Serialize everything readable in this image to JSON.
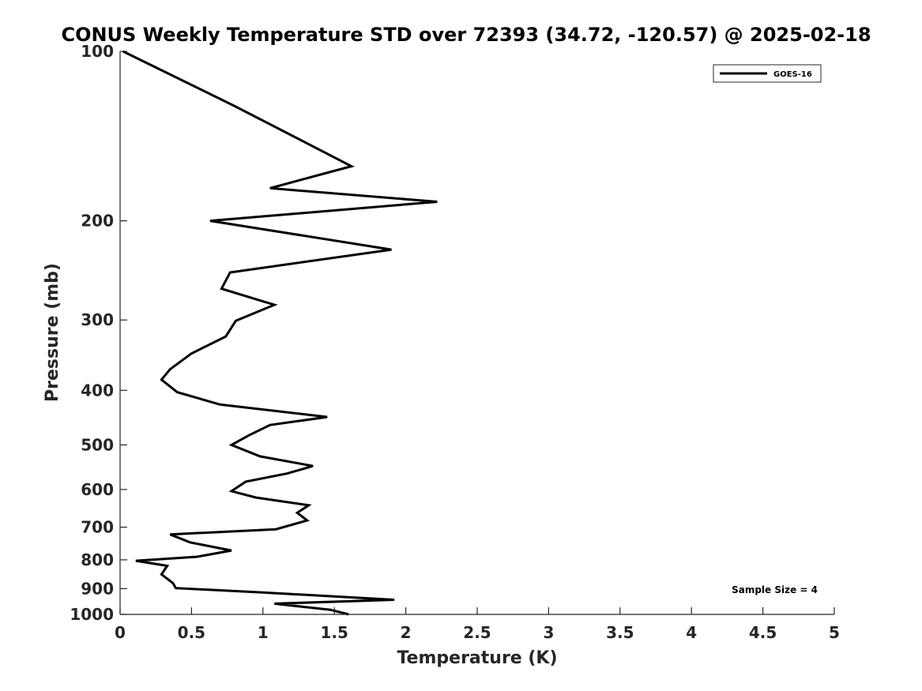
{
  "chart_data": {
    "type": "line",
    "title": "CONUS Weekly Temperature STD over 72393 (34.72, -120.57) @ 2025-02-18",
    "xlabel": "Temperature (K)",
    "ylabel": "Pressure (mb)",
    "xlim": [
      0,
      5
    ],
    "ylim": [
      100,
      1000
    ],
    "y_scale": "log",
    "y_reversed": true,
    "x_ticks": [
      "0",
      "0.5",
      "1",
      "1.5",
      "2",
      "2.5",
      "3",
      "3.5",
      "4",
      "4.5",
      "5"
    ],
    "y_ticks": [
      "100",
      "200",
      "300",
      "400",
      "500",
      "600",
      "700",
      "800",
      "900",
      "1000"
    ],
    "grid": false,
    "legend_position": "top-right",
    "annotation": "Sample Size = 4",
    "series": [
      {
        "name": "GOES-16",
        "color": "#000000",
        "points": [
          [
            0.02,
            100
          ],
          [
            0.8,
            125
          ],
          [
            1.62,
            160
          ],
          [
            1.05,
            175
          ],
          [
            2.22,
            185
          ],
          [
            0.63,
            200
          ],
          [
            1.9,
            225
          ],
          [
            0.77,
            247
          ],
          [
            0.71,
            264
          ],
          [
            1.08,
            282
          ],
          [
            0.81,
            301
          ],
          [
            0.74,
            321
          ],
          [
            0.5,
            344
          ],
          [
            0.35,
            367
          ],
          [
            0.29,
            383
          ],
          [
            0.4,
            403
          ],
          [
            0.7,
            424
          ],
          [
            1.45,
            446
          ],
          [
            1.05,
            461
          ],
          [
            0.9,
            481
          ],
          [
            0.78,
            500
          ],
          [
            0.98,
            524
          ],
          [
            1.35,
            545
          ],
          [
            1.17,
            562
          ],
          [
            0.88,
            581
          ],
          [
            0.78,
            604
          ],
          [
            0.95,
            620
          ],
          [
            1.32,
            640
          ],
          [
            1.24,
            660
          ],
          [
            1.31,
            681
          ],
          [
            1.09,
            706
          ],
          [
            0.35,
            721
          ],
          [
            0.49,
            745
          ],
          [
            0.78,
            770
          ],
          [
            0.54,
            790
          ],
          [
            0.11,
            803
          ],
          [
            0.33,
            820
          ],
          [
            0.29,
            849
          ],
          [
            0.37,
            880
          ],
          [
            0.39,
            898
          ],
          [
            1.0,
            914
          ],
          [
            1.92,
            942
          ],
          [
            1.08,
            957
          ],
          [
            1.47,
            981
          ],
          [
            1.6,
            1000
          ]
        ]
      }
    ]
  }
}
